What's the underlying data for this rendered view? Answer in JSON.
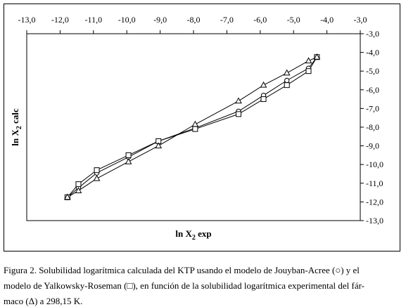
{
  "chart_data": {
    "type": "scatter",
    "title": "",
    "xlabel_main": "ln X",
    "xlabel_sub": "2",
    "xlabel_rest": " exp",
    "ylabel_main": "ln X",
    "ylabel_sub": "2",
    "ylabel_rest": " calc",
    "xlim": [
      -13.0,
      -3.0
    ],
    "ylim": [
      -13.0,
      -3.0
    ],
    "x_ticks": [
      -13.0,
      -12.0,
      -11.0,
      -10.0,
      -9.0,
      -8.0,
      -7.0,
      -6.0,
      -5.0,
      -4.0,
      -3.0
    ],
    "x_tick_labels": [
      "-13,0",
      "-12,0",
      "-11,0",
      "-10,0",
      "-9,0",
      "-8,0",
      "-7,0",
      "-6,0",
      "-5,0",
      "-4,0",
      "-3,0"
    ],
    "y_ticks": [
      -3.0,
      -4.0,
      -5.0,
      -6.0,
      -7.0,
      -8.0,
      -9.0,
      -10.0,
      -11.0,
      -12.0,
      -13.0
    ],
    "y_tick_labels": [
      "-3,0",
      "-4,0",
      "-5,0",
      "-6,0",
      "-7,0",
      "-8,0",
      "-9,0",
      "-10,0",
      "-11,0",
      "-12,0",
      "-13,0"
    ],
    "x_axis_position": "top",
    "y_axis_position": "right",
    "grid": false,
    "legend": "none",
    "x": [
      -11.78,
      -11.45,
      -10.9,
      -9.95,
      -9.05,
      -7.95,
      -6.65,
      -5.9,
      -5.2,
      -4.55,
      -4.3
    ],
    "series": [
      {
        "marker": "circle",
        "values": [
          -11.75,
          -11.25,
          -10.45,
          -9.6,
          -8.75,
          -8.05,
          -7.15,
          -6.3,
          -5.5,
          -4.85,
          -4.25
        ]
      },
      {
        "marker": "square",
        "values": [
          -11.75,
          -11.05,
          -10.3,
          -9.5,
          -8.75,
          -8.1,
          -7.3,
          -6.5,
          -5.75,
          -5.0,
          -4.25
        ]
      },
      {
        "marker": "triangle",
        "values": [
          -11.75,
          -11.4,
          -10.75,
          -9.85,
          -9.0,
          -7.85,
          -6.6,
          -5.75,
          -5.1,
          -4.45,
          -4.25
        ]
      }
    ],
    "series_color": "#000000"
  },
  "caption": {
    "line1": "Figura 2. Solubilidad logarítmica calculada del KTP usando el modelo de Jouyban-Acree (○) y el",
    "line2": "modelo de Yalkowsky-Roseman (□), en función de la solubilidad logarítmica experimental del fár-",
    "line3": "maco (Δ) a 298,15 K."
  }
}
